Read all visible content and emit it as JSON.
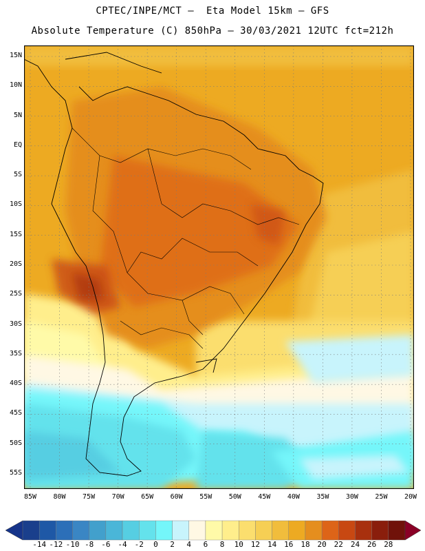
{
  "header": {
    "line1": "CPTEC/INPE/MCT –  Eta Model 15km – GFS",
    "line2": "Absolute Temperature (C) 850hPa – 30/03/2021 12UTC fct=212h"
  },
  "map": {
    "variable": "Absolute Temperature (C) 850hPa",
    "lat_labels": [
      "15N",
      "10N",
      "5N",
      "EQ",
      "5S",
      "10S",
      "15S",
      "20S",
      "25S",
      "30S",
      "35S",
      "40S",
      "45S",
      "50S",
      "55S"
    ],
    "lon_labels": [
      "85W",
      "80W",
      "75W",
      "70W",
      "65W",
      "60W",
      "55W",
      "50W",
      "45W",
      "40W",
      "35W",
      "30W",
      "25W",
      "20W"
    ],
    "grid": "dotted",
    "colors": {
      "frame": "#000000",
      "coast": "#000000",
      "grid": "#7a7a7a"
    }
  },
  "legend": {
    "labels": [
      "-14",
      "-12",
      "-10",
      "-8",
      "-6",
      "-4",
      "-2",
      "0",
      "2",
      "4",
      "6",
      "8",
      "10",
      "12",
      "14",
      "16",
      "18",
      "20",
      "22",
      "24",
      "26",
      "28"
    ],
    "colors": [
      "#1a3f8c",
      "#1e58a6",
      "#2c6fb8",
      "#3a86c4",
      "#42a0cc",
      "#4ab6d8",
      "#56cee2",
      "#64e2ec",
      "#74f6fa",
      "#c8f4fc",
      "#fff8e4",
      "#fffaa8",
      "#ffee8c",
      "#fbde6e",
      "#f6cf54",
      "#f1bd3c",
      "#edaa22",
      "#e58e1e",
      "#dd6418",
      "#c84812",
      "#a8300e",
      "#8a1e0c",
      "#70120a"
    ],
    "low_arrow_color": "#16348a",
    "high_arrow_color": "#8a0026"
  }
}
